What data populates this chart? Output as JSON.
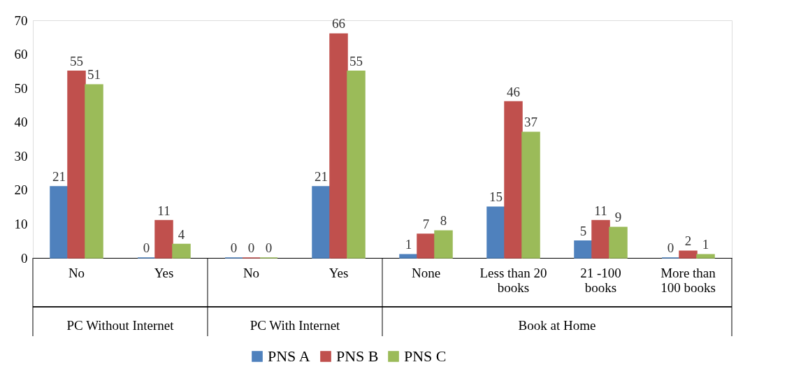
{
  "chart_data": {
    "type": "bar",
    "categories": [
      "No",
      "Yes",
      "No",
      "Yes",
      "None",
      "Less than 20 books",
      "21 -100 books",
      "More than 100 books"
    ],
    "series": [
      {
        "name": "PNS A",
        "color": "#4f81bd",
        "values": [
          21,
          0,
          0,
          21,
          1,
          15,
          5,
          0
        ]
      },
      {
        "name": "PNS B",
        "color": "#c0504d",
        "values": [
          55,
          11,
          0,
          66,
          7,
          46,
          11,
          2
        ]
      },
      {
        "name": "PNS C",
        "color": "#9bbb59",
        "values": [
          51,
          4,
          0,
          55,
          8,
          37,
          9,
          1
        ]
      }
    ],
    "annotations": [
      "PC Without Internet",
      "PC With Internet",
      "Book at Home"
    ],
    "ylim": [
      0,
      70
    ],
    "yticks": [
      0,
      10,
      20,
      30,
      40,
      50,
      60,
      70
    ],
    "data_labels": true,
    "grid": false,
    "legend": "bottom"
  }
}
